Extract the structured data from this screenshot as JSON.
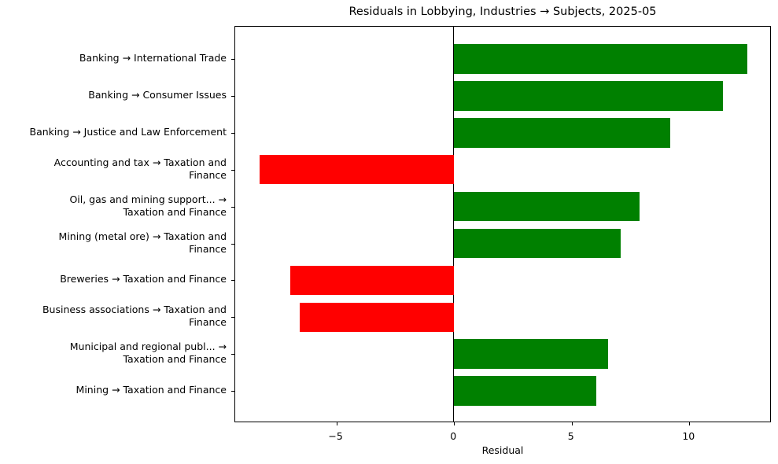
{
  "chart_data": {
    "type": "bar",
    "orientation": "horizontal",
    "title": "Residuals in Lobbying, Industries → Subjects, 2025-05",
    "xlabel": "Residual",
    "ylabel": "",
    "xlim": [
      -9.3,
      13.5
    ],
    "xticks": [
      -5,
      0,
      5,
      10
    ],
    "xtick_labels": [
      "−5",
      "0",
      "5",
      "10"
    ],
    "grid": false,
    "legend": null,
    "zero_line": true,
    "colors": {
      "positive": "#008000",
      "negative": "#ff0000"
    },
    "categories": [
      "Banking → International Trade",
      "Banking → Consumer Issues",
      "Banking → Justice and Law Enforcement",
      "Accounting and tax → Taxation and\nFinance",
      "Oil, gas and mining support... →\nTaxation and Finance",
      "Mining (metal ore) → Taxation and\nFinance",
      "Breweries → Taxation and Finance",
      "Business associations → Taxation and\nFinance",
      "Municipal and regional publ... →\nTaxation and Finance",
      "Mining → Taxation and Finance"
    ],
    "values": [
      12.47,
      11.44,
      9.2,
      -8.26,
      7.89,
      7.09,
      -6.96,
      -6.56,
      6.56,
      6.05
    ]
  }
}
